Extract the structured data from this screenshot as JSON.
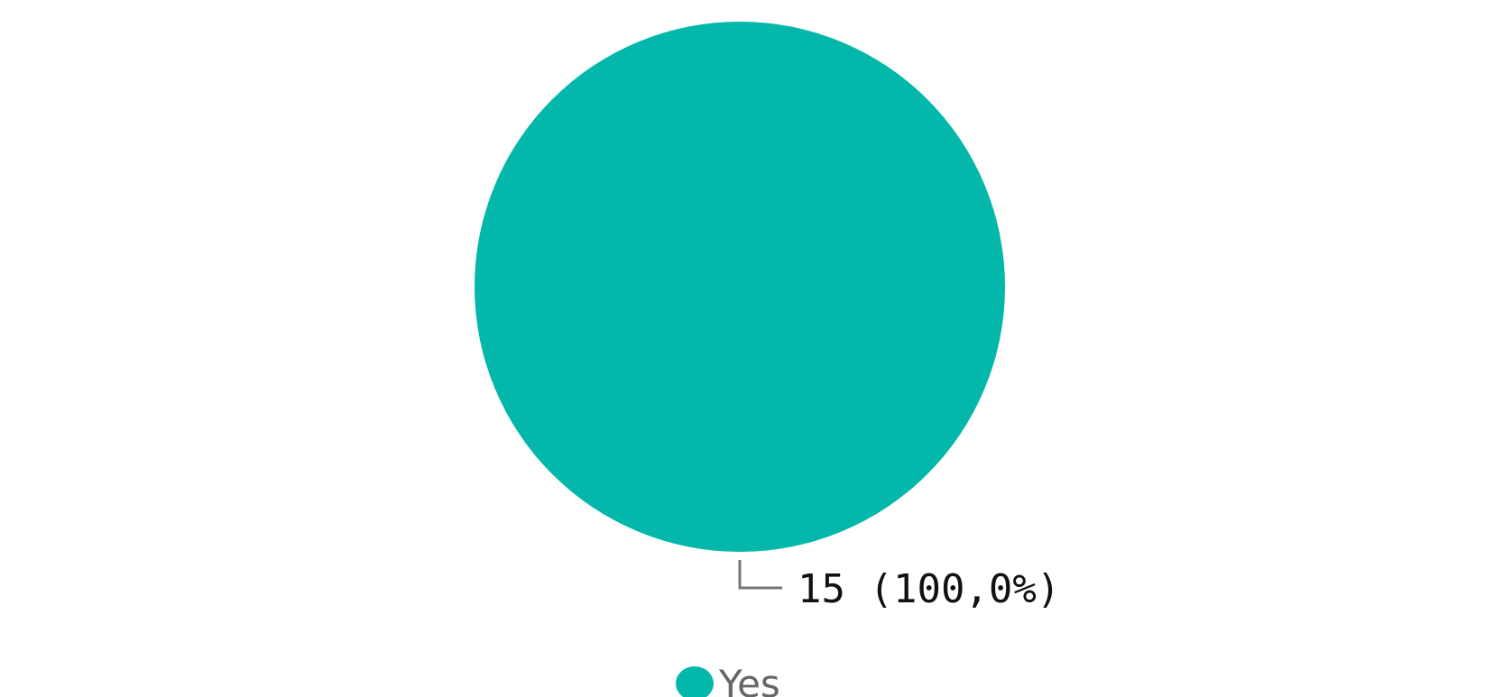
{
  "chart_data": {
    "type": "pie",
    "categories": [
      "Yes"
    ],
    "values": [
      15
    ],
    "value_labels": [
      "15 (100,0%)"
    ],
    "colors": [
      "#03b8ab"
    ]
  }
}
